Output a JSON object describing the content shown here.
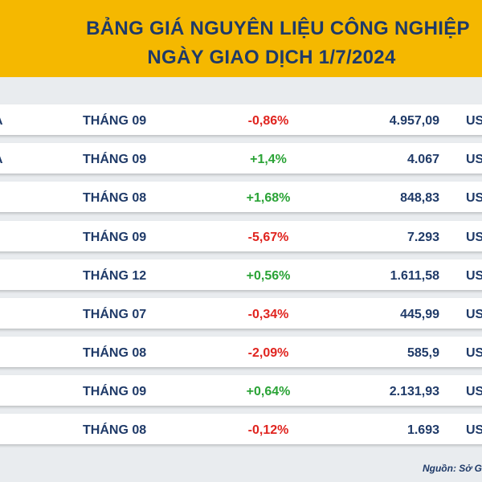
{
  "header": {
    "title_line1": "BẢNG GIÁ NGUYÊN LIỆU CÔNG NGHIỆP",
    "title_line2": "NGÀY GIAO DỊCH 1/7/2024"
  },
  "rows": [
    {
      "name": "A",
      "month": "THÁNG 09",
      "change": "-0,86%",
      "direction": "down",
      "price": "4.957,09",
      "unit": "US"
    },
    {
      "name": "A",
      "month": "THÁNG 09",
      "change": "+1,4%",
      "direction": "up",
      "price": "4.067",
      "unit": "US"
    },
    {
      "name": "",
      "month": "THÁNG 08",
      "change": "+1,68%",
      "direction": "up",
      "price": "848,83",
      "unit": "US"
    },
    {
      "name": "",
      "month": "THÁNG 09",
      "change": "-5,67%",
      "direction": "down",
      "price": "7.293",
      "unit": "US"
    },
    {
      "name": "",
      "month": "THÁNG 12",
      "change": "+0,56%",
      "direction": "up",
      "price": "1.611,58",
      "unit": "US"
    },
    {
      "name": "",
      "month": "THÁNG 07",
      "change": "-0,34%",
      "direction": "down",
      "price": "445,99",
      "unit": "US"
    },
    {
      "name": "",
      "month": "THÁNG 08",
      "change": "-2,09%",
      "direction": "down",
      "price": "585,9",
      "unit": "US"
    },
    {
      "name": "",
      "month": "THÁNG 09",
      "change": "+0,64%",
      "direction": "up",
      "price": "2.131,93",
      "unit": "US"
    },
    {
      "name": "",
      "month": "THÁNG 08",
      "change": "-0,12%",
      "direction": "down",
      "price": "1.693",
      "unit": "US"
    }
  ],
  "source": "Nguồn: Sở G",
  "colors": {
    "banner": "#f5b800",
    "text": "#1f3a68",
    "negative": "#e0241f",
    "positive": "#2aa336"
  }
}
